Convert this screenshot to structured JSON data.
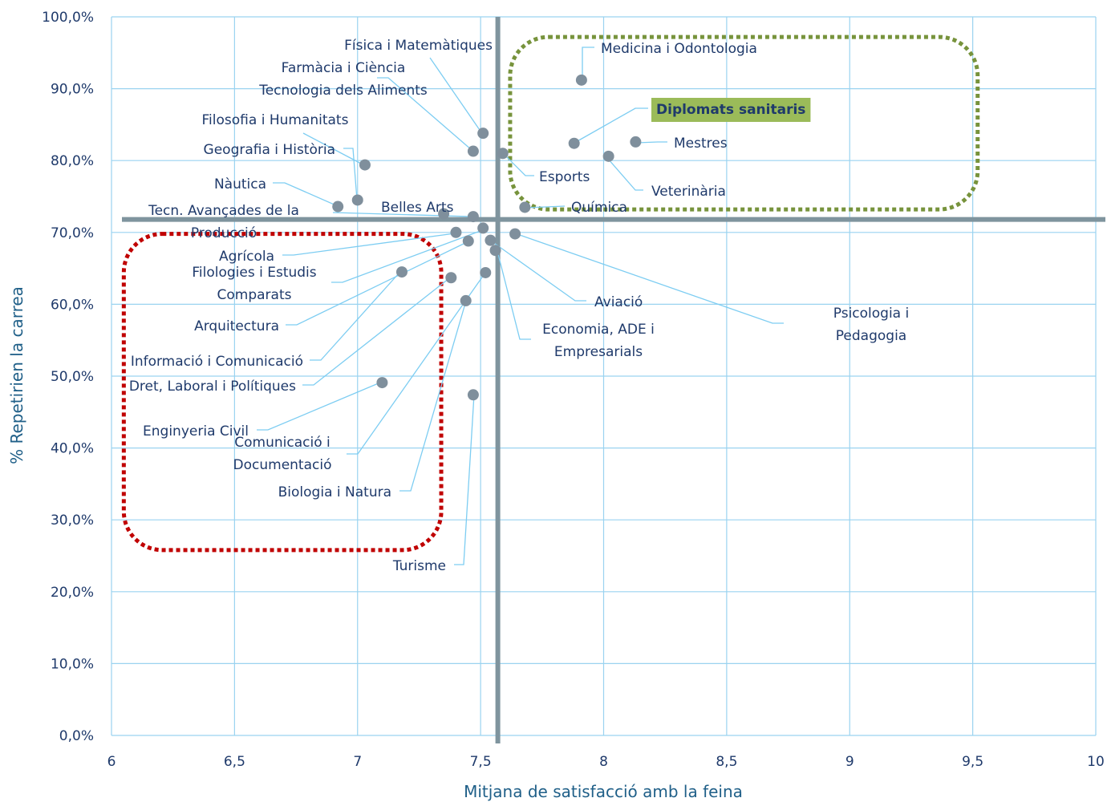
{
  "chart_data": {
    "type": "scatter",
    "title": "",
    "xlabel": "Mitjana de satisfacció amb la feina",
    "ylabel": "% Repetirien la carrea",
    "xlim": [
      6,
      10
    ],
    "ylim": [
      0,
      100
    ],
    "x_ticks": [
      "6",
      "6,5",
      "7",
      "7,5",
      "8",
      "8,5",
      "9",
      "9,5",
      "10"
    ],
    "y_ticks": [
      "0,0%",
      "10,0%",
      "20,0%",
      "30,0%",
      "40,0%",
      "50,0%",
      "60,0%",
      "70,0%",
      "80,0%",
      "90,0%",
      "100,0%"
    ],
    "grid": true,
    "legend": "none",
    "reference_lines": {
      "x": 7.57,
      "y": 71.8
    },
    "highlight_regions": [
      {
        "name": "top-right",
        "color": "#77933c",
        "x": [
          7.62,
          9.52
        ],
        "y": [
          73.2,
          97.2
        ]
      },
      {
        "name": "bottom-left",
        "color": "#c00000",
        "x": [
          6.05,
          7.34
        ],
        "y": [
          25.8,
          69.8
        ]
      }
    ],
    "points": [
      {
        "label": "Medicina i Odontologia",
        "x": 7.91,
        "y": 91.2
      },
      {
        "label": "Física i Matemàtiques",
        "x": 7.51,
        "y": 83.8
      },
      {
        "label": "Farmàcia i Ciència Tecnologia dels Aliments",
        "x": 7.47,
        "y": 81.3
      },
      {
        "label": "Esports",
        "x": 7.59,
        "y": 81.0
      },
      {
        "label": "Diplomats sanitaris",
        "x": 7.88,
        "y": 82.4
      },
      {
        "label": "Mestres",
        "x": 8.13,
        "y": 82.6
      },
      {
        "label": "Veterinària",
        "x": 8.02,
        "y": 80.6
      },
      {
        "label": "Filosofia i Humanitats",
        "x": 7.03,
        "y": 79.4
      },
      {
        "label": "Geografia i Història",
        "x": 7.0,
        "y": 74.5
      },
      {
        "label": "Nàutica",
        "x": 6.92,
        "y": 73.6
      },
      {
        "label": "Química",
        "x": 7.68,
        "y": 73.5
      },
      {
        "label": "Belles Arts",
        "x": 7.35,
        "y": 72.6
      },
      {
        "label": "Tecn. Avançades de la Producció",
        "x": 7.47,
        "y": 72.2
      },
      {
        "label": "Agrícola",
        "x": 7.4,
        "y": 70.0
      },
      {
        "label": "Filologies i Estudis Comparats",
        "x": 7.51,
        "y": 70.6
      },
      {
        "label": "Psicologia i Pedagogia",
        "x": 7.64,
        "y": 69.8
      },
      {
        "label": "Aviació",
        "x": 7.54,
        "y": 68.9
      },
      {
        "label": "Arquitectura",
        "x": 7.45,
        "y": 68.8
      },
      {
        "label": "Economia, ADE i Empresarials",
        "x": 7.56,
        "y": 67.5
      },
      {
        "label": "Informació i Comunicació",
        "x": 7.18,
        "y": 64.5
      },
      {
        "label": "Dret, Laboral i Polítiques",
        "x": 7.38,
        "y": 63.7
      },
      {
        "label": "Comunicació i Documentació",
        "x": 7.52,
        "y": 64.4
      },
      {
        "label": "Biologia i Natura",
        "x": 7.44,
        "y": 60.5
      },
      {
        "label": "Enginyeria Civil",
        "x": 7.1,
        "y": 49.1
      },
      {
        "label": "Turisme",
        "x": 7.47,
        "y": 47.4
      }
    ],
    "labels": [
      {
        "id": "medicina",
        "lines": [
          "Medicina i Odontologia"
        ]
      },
      {
        "id": "fisica",
        "lines": [
          "Física i Matemàtiques"
        ]
      },
      {
        "id": "farmacia",
        "lines": [
          "Farmàcia i Ciència",
          "Tecnologia dels Aliments"
        ]
      },
      {
        "id": "esports",
        "lines": [
          "Esports"
        ]
      },
      {
        "id": "diplomats",
        "lines": [
          "Diplomats sanitaris"
        ],
        "highlight": "#9bbb59"
      },
      {
        "id": "mestres",
        "lines": [
          "Mestres"
        ]
      },
      {
        "id": "veterinaria",
        "lines": [
          "Veterinària"
        ]
      },
      {
        "id": "filosofia",
        "lines": [
          "Filosofia i Humanitats"
        ]
      },
      {
        "id": "geografia",
        "lines": [
          "Geografia i Història"
        ]
      },
      {
        "id": "nautica",
        "lines": [
          "Nàutica"
        ]
      },
      {
        "id": "quimica",
        "lines": [
          "Química"
        ]
      },
      {
        "id": "bellesarts",
        "lines": [
          "Belles Arts"
        ]
      },
      {
        "id": "tecn",
        "lines": [
          "Tecn. Avançades de la",
          "Producció"
        ]
      },
      {
        "id": "agricola",
        "lines": [
          "Agrícola"
        ]
      },
      {
        "id": "filologies",
        "lines": [
          "Filologies i Estudis",
          "Comparats"
        ]
      },
      {
        "id": "psicologia",
        "lines": [
          "Psicologia i",
          "Pedagogia"
        ]
      },
      {
        "id": "aviacio",
        "lines": [
          "Aviació"
        ]
      },
      {
        "id": "arquitectura",
        "lines": [
          "Arquitectura"
        ]
      },
      {
        "id": "economia",
        "lines": [
          "Economia, ADE i",
          "Empresarials"
        ]
      },
      {
        "id": "informacio",
        "lines": [
          "Informació i Comunicació"
        ]
      },
      {
        "id": "dret",
        "lines": [
          "Dret, Laboral i Polítiques"
        ]
      },
      {
        "id": "enginyeria",
        "lines": [
          "Enginyeria Civil"
        ]
      },
      {
        "id": "comunicacio",
        "lines": [
          "Comunicació i",
          "Documentació"
        ]
      },
      {
        "id": "biologia",
        "lines": [
          "Biologia i Natura"
        ]
      },
      {
        "id": "turisme",
        "lines": [
          "Turisme"
        ]
      }
    ],
    "colors": {
      "points": "#7f8f9c",
      "leaders": "#7dcdf2",
      "grid": "#9ad3f0",
      "reference": "#7f949e",
      "text": "#1f3a6b"
    }
  }
}
